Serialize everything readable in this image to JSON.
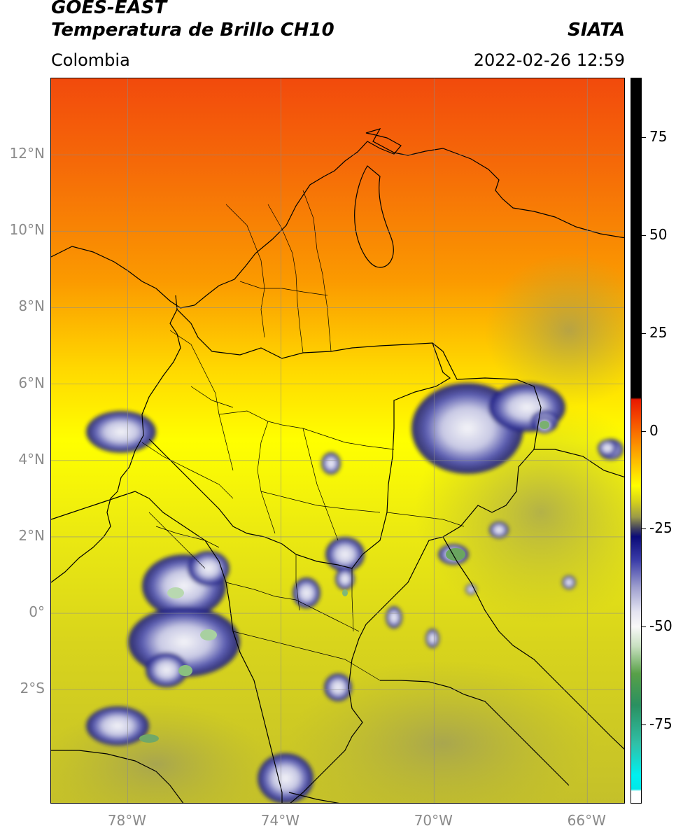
{
  "header": {
    "satellite": "GOES-EAST",
    "product": "Temperatura de Brillo CH10",
    "region": "Colombia",
    "agency": "SIATA",
    "datetime": "2022-02-26 12:59"
  },
  "map": {
    "lon_range": [
      -80,
      -65
    ],
    "lat_range": [
      -5,
      14
    ],
    "lat_ticks": [
      {
        "value": 12,
        "label": "12°N"
      },
      {
        "value": 10,
        "label": "10°N"
      },
      {
        "value": 8,
        "label": "8°N"
      },
      {
        "value": 6,
        "label": "6°N"
      },
      {
        "value": 4,
        "label": "4°N"
      },
      {
        "value": 2,
        "label": "2°N"
      },
      {
        "value": 0,
        "label": "0°"
      },
      {
        "value": -2,
        "label": "2°S"
      }
    ],
    "lon_ticks": [
      {
        "value": -78,
        "label": "78°W"
      },
      {
        "value": -74,
        "label": "74°W"
      },
      {
        "value": -70,
        "label": "70°W"
      },
      {
        "value": -66,
        "label": "66°W"
      }
    ],
    "grid": true
  },
  "colorbar": {
    "range": [
      -95,
      90
    ],
    "ticks": [
      {
        "value": 75,
        "label": "75"
      },
      {
        "value": 50,
        "label": "50"
      },
      {
        "value": 25,
        "label": "25"
      },
      {
        "value": 0,
        "label": "0"
      },
      {
        "value": -25,
        "label": "-25"
      },
      {
        "value": -50,
        "label": "-50"
      },
      {
        "value": -75,
        "label": "-75"
      }
    ],
    "stops": [
      {
        "value": 90,
        "color": "#000000"
      },
      {
        "value": 8.5,
        "color": "#000000"
      },
      {
        "value": 8,
        "color": "#e81800"
      },
      {
        "value": 3,
        "color": "#f54a00"
      },
      {
        "value": -3,
        "color": "#fb8a00"
      },
      {
        "value": -10,
        "color": "#ffd400"
      },
      {
        "value": -14,
        "color": "#ffff00"
      },
      {
        "value": -18,
        "color": "#d6d21a"
      },
      {
        "value": -22,
        "color": "#9b9a48"
      },
      {
        "value": -25,
        "color": "#3e3e5e"
      },
      {
        "value": -27,
        "color": "#0a0a78"
      },
      {
        "value": -33,
        "color": "#3a3ca8"
      },
      {
        "value": -40,
        "color": "#9fa0cf"
      },
      {
        "value": -46,
        "color": "#e2e2f0"
      },
      {
        "value": -50,
        "color": "#f8f8f8"
      },
      {
        "value": -55,
        "color": "#c8e0c0"
      },
      {
        "value": -62,
        "color": "#58a048"
      },
      {
        "value": -70,
        "color": "#2a9060"
      },
      {
        "value": -80,
        "color": "#30c0a8"
      },
      {
        "value": -88,
        "color": "#00f0f0"
      },
      {
        "value": -91.5,
        "color": "#00e8e8"
      },
      {
        "value": -92,
        "color": "#ffffff"
      },
      {
        "value": -95,
        "color": "#ffffff"
      }
    ]
  }
}
